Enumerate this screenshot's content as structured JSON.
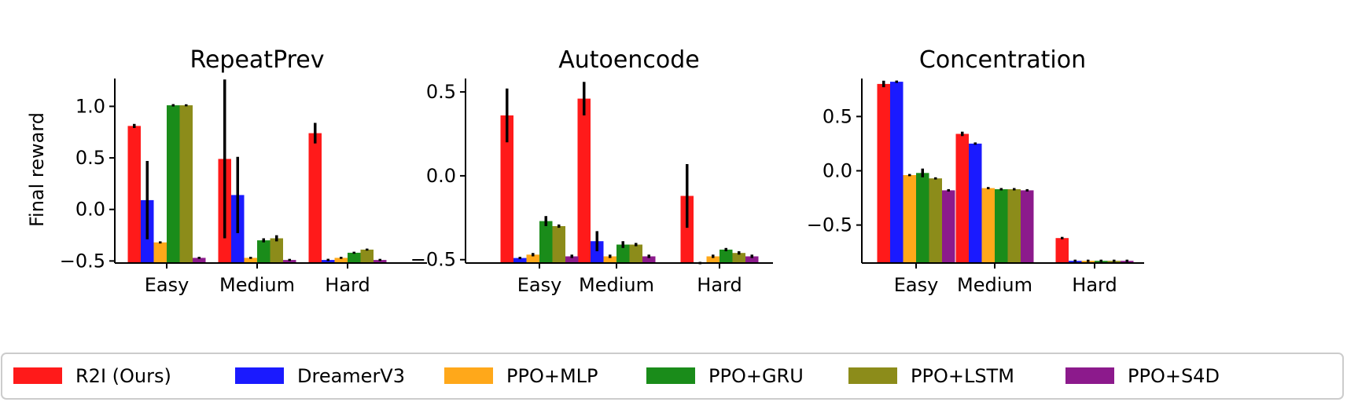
{
  "figure": {
    "ylabel": "Final reward"
  },
  "legend": [
    {
      "name": "R2I (Ours)",
      "color": "#ff1a1a"
    },
    {
      "name": "DreamerV3",
      "color": "#1a1aff"
    },
    {
      "name": "PPO+MLP",
      "color": "#ffa81a"
    },
    {
      "name": "PPO+GRU",
      "color": "#1a8c1a"
    },
    {
      "name": "PPO+LSTM",
      "color": "#8c8c1a"
    },
    {
      "name": "PPO+S4D",
      "color": "#8c1a8c"
    }
  ],
  "chart_data": [
    {
      "type": "bar",
      "title": "RepeatPrev",
      "categories": [
        "Easy",
        "Medium",
        "Hard"
      ],
      "ylim": [
        -0.52,
        1.27
      ],
      "yticks": [
        -0.5,
        0.0,
        0.5,
        1.0
      ],
      "ytick_labels": [
        "−0.5",
        "0.0",
        "0.5",
        "1.0"
      ],
      "series": [
        {
          "name": "R2I (Ours)",
          "values": [
            0.81,
            0.49,
            0.74
          ],
          "err": [
            0.02,
            0.77,
            0.1
          ]
        },
        {
          "name": "DreamerV3",
          "values": [
            0.09,
            0.14,
            -0.49
          ],
          "err": [
            0.38,
            0.37,
            0.0
          ]
        },
        {
          "name": "PPO+MLP",
          "values": [
            -0.32,
            -0.47,
            -0.47
          ],
          "err": [
            0.01,
            0.01,
            0.01
          ]
        },
        {
          "name": "PPO+GRU",
          "values": [
            1.01,
            -0.3,
            -0.42
          ],
          "err": [
            0.0,
            0.02,
            0.01
          ]
        },
        {
          "name": "PPO+LSTM",
          "values": [
            1.01,
            -0.28,
            -0.39
          ],
          "err": [
            0.01,
            0.03,
            0.01
          ]
        },
        {
          "name": "PPO+S4D",
          "values": [
            -0.47,
            -0.49,
            -0.49
          ],
          "err": [
            0.01,
            0.01,
            0.01
          ]
        }
      ]
    },
    {
      "type": "bar",
      "title": "Autoencode",
      "categories": [
        "Easy",
        "Medium",
        "Hard"
      ],
      "ylim": [
        -0.52,
        0.58
      ],
      "yticks": [
        -0.5,
        0.0,
        0.5
      ],
      "ytick_labels": [
        "−0.5",
        "0.0",
        "0.5"
      ],
      "series": [
        {
          "name": "R2I (Ours)",
          "values": [
            0.36,
            0.46,
            -0.12
          ],
          "err": [
            0.16,
            0.1,
            0.19
          ]
        },
        {
          "name": "DreamerV3",
          "values": [
            -0.49,
            -0.39,
            -0.52
          ],
          "err": [
            0.0,
            0.06,
            0.0
          ]
        },
        {
          "name": "PPO+MLP",
          "values": [
            -0.47,
            -0.48,
            -0.48
          ],
          "err": [
            0.01,
            0.01,
            0.01
          ]
        },
        {
          "name": "PPO+GRU",
          "values": [
            -0.27,
            -0.41,
            -0.44
          ],
          "err": [
            0.03,
            0.02,
            0.01
          ]
        },
        {
          "name": "PPO+LSTM",
          "values": [
            -0.3,
            -0.41,
            -0.46
          ],
          "err": [
            0.01,
            0.01,
            0.01
          ]
        },
        {
          "name": "PPO+S4D",
          "values": [
            -0.48,
            -0.48,
            -0.48
          ],
          "err": [
            0.01,
            0.01,
            0.01
          ]
        }
      ]
    },
    {
      "type": "bar",
      "title": "Concentration",
      "categories": [
        "Easy",
        "Medium",
        "Hard"
      ],
      "ylim": [
        -0.85,
        0.85
      ],
      "yticks": [
        -0.5,
        0.0,
        0.5
      ],
      "ytick_labels": [
        "−0.5",
        "0.0",
        "0.5"
      ],
      "series": [
        {
          "name": "R2I (Ours)",
          "values": [
            0.8,
            0.34,
            -0.62
          ],
          "err": [
            0.03,
            0.02,
            0.0
          ]
        },
        {
          "name": "DreamerV3",
          "values": [
            0.82,
            0.25,
            -0.83
          ],
          "err": [
            0.0,
            0.0,
            0.0
          ]
        },
        {
          "name": "PPO+MLP",
          "values": [
            -0.04,
            -0.16,
            -0.83
          ],
          "err": [
            0.01,
            0.01,
            0.0
          ]
        },
        {
          "name": "PPO+GRU",
          "values": [
            -0.02,
            -0.17,
            -0.83
          ],
          "err": [
            0.04,
            0.0,
            0.0
          ]
        },
        {
          "name": "PPO+LSTM",
          "values": [
            -0.07,
            -0.17,
            -0.83
          ],
          "err": [
            0.01,
            0.0,
            0.0
          ]
        },
        {
          "name": "PPO+S4D",
          "values": [
            -0.18,
            -0.18,
            -0.83
          ],
          "err": [
            0.0,
            0.0,
            0.0
          ]
        }
      ]
    }
  ]
}
